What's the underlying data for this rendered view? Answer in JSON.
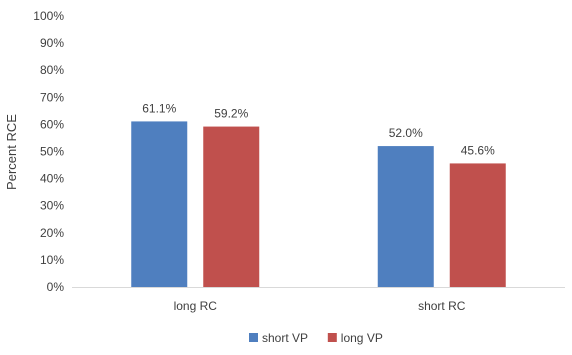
{
  "chart_data": {
    "type": "bar",
    "title": "",
    "xlabel": "",
    "ylabel": "Percent RCE",
    "ylim": [
      0,
      100
    ],
    "ytick_step": 10,
    "y_format": "percent-integer",
    "categories": [
      "long RC",
      "short RC"
    ],
    "series": [
      {
        "name": "short VP",
        "color": "#4f7fbf",
        "values": [
          61.1,
          52.0
        ],
        "labels": [
          "61.1%",
          "52.0%"
        ]
      },
      {
        "name": "long VP",
        "color": "#c0504d",
        "values": [
          59.2,
          45.6
        ],
        "labels": [
          "59.2%",
          "45.6%"
        ]
      }
    ],
    "grid": false,
    "legend_position": "bottom-center"
  }
}
